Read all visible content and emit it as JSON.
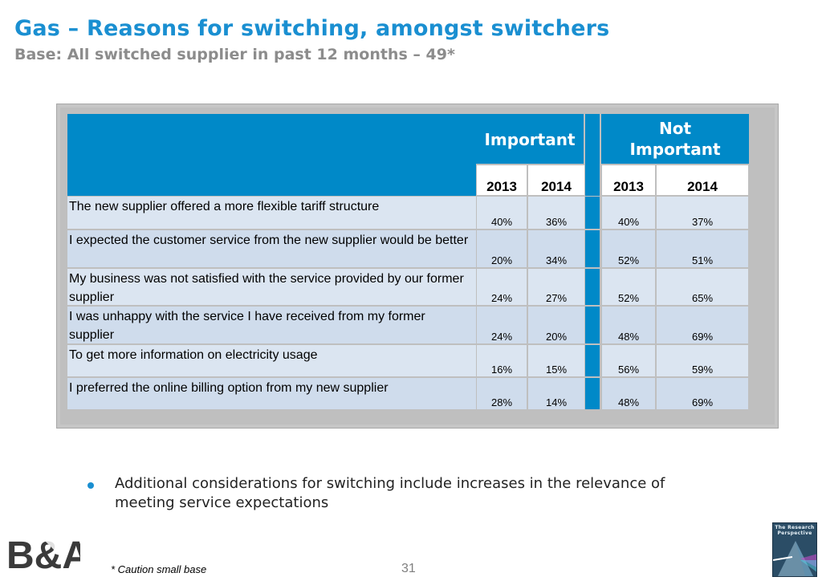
{
  "header": {
    "title": "Gas – Reasons for switching, amongst switchers",
    "subtitle": "Base: All switched supplier in past 12 months – 49*"
  },
  "table": {
    "groups": {
      "important": "Important",
      "not_important": "Not Important"
    },
    "years": [
      "2013",
      "2014",
      "2013",
      "2014"
    ],
    "rows": [
      {
        "label": "The new supplier offered a more flexible tariff structure",
        "imp_2013": "40%",
        "imp_2014": "36%",
        "not_2013": "40%",
        "not_2014": "37%"
      },
      {
        "label": "I expected the customer service from the new supplier would be  better",
        "imp_2013": "20%",
        "imp_2014": "34%",
        "not_2013": "52%",
        "not_2014": "51%"
      },
      {
        "label": "My business was not satisfied with the service provided by our former supplier",
        "imp_2013": "24%",
        "imp_2014": "27%",
        "not_2013": "52%",
        "not_2014": "65%"
      },
      {
        "label": "I was unhappy with the service I have received from my former supplier",
        "imp_2013": "24%",
        "imp_2014": "20%",
        "not_2013": "48%",
        "not_2014": "69%"
      },
      {
        "label": "To get more information on electricity usage",
        "imp_2013": "16%",
        "imp_2014": "15%",
        "not_2013": "56%",
        "not_2014": "59%"
      },
      {
        "label": "I preferred the online billing option from my new supplier",
        "imp_2013": "28%",
        "imp_2014": "14%",
        "not_2013": "48%",
        "not_2014": "69%"
      }
    ]
  },
  "bullet": {
    "text": "Additional considerations for switching include increases in the relevance of meeting service expectations"
  },
  "footer": {
    "footnote": "* Caution small base",
    "page_number": "31",
    "logo_left": "B&A",
    "logo_right": "The Research Perspective"
  },
  "colors": {
    "title_blue": "#1a8fd1",
    "header_blue": "#0089c8",
    "row_light": "#dbe5f1",
    "subtitle_grey": "#8c8c8c"
  }
}
